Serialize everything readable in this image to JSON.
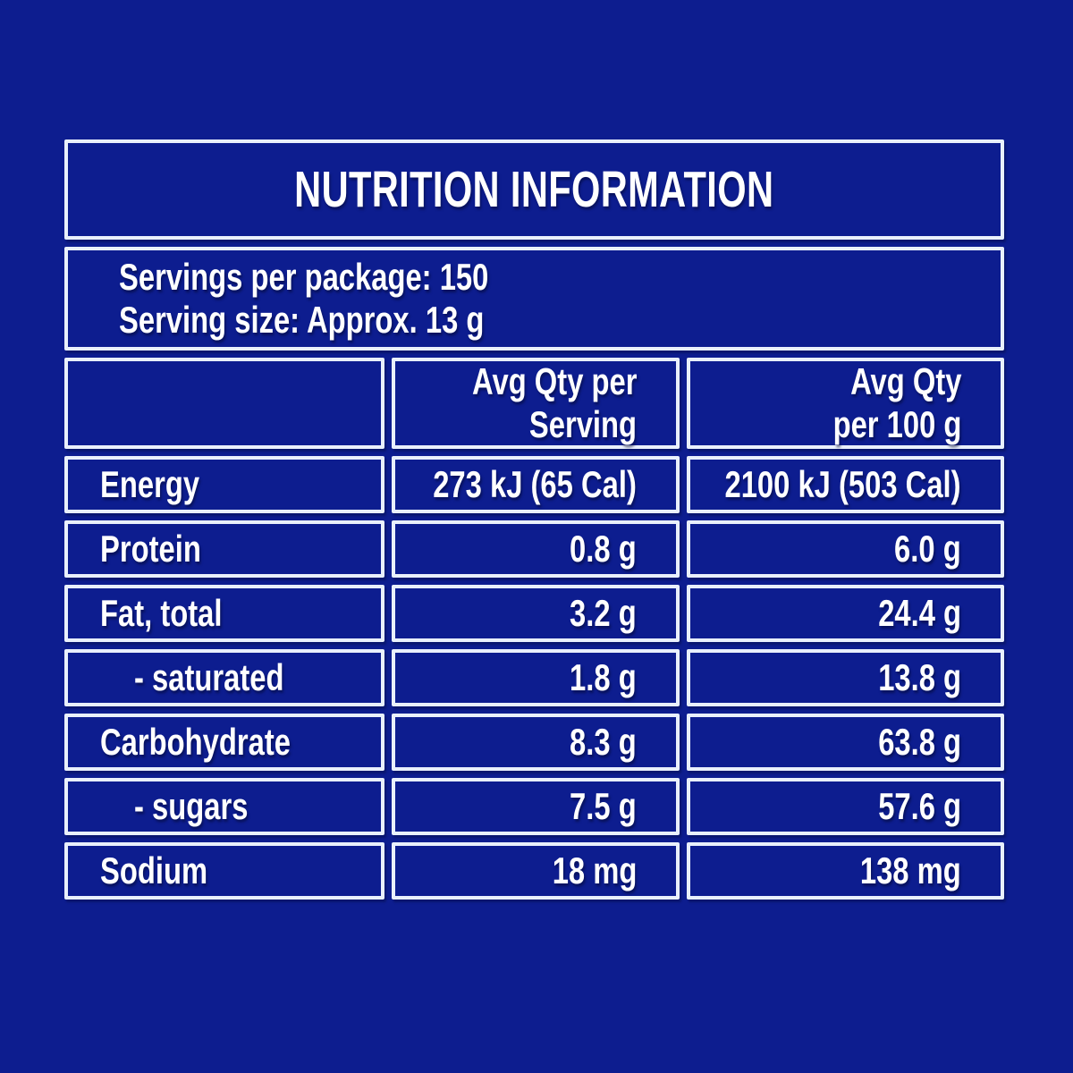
{
  "panel": {
    "title": "NUTRITION INFORMATION",
    "serving_info": {
      "servings_per_package": "Servings per package: 150",
      "serving_size": "Serving size: Approx. 13 g"
    },
    "columns": {
      "per_serving": {
        "line1": "Avg Qty per",
        "line2": "Serving"
      },
      "per_100g": {
        "line1": "Avg Qty",
        "line2": "per 100 g"
      }
    },
    "rows": [
      {
        "label": "Energy",
        "per_serving": "273 kJ (65 Cal)",
        "per_100g": "2100 kJ (503 Cal)"
      },
      {
        "label": "Protein",
        "per_serving": "0.8 g",
        "per_100g": "6.0 g"
      },
      {
        "label": "Fat, total",
        "per_serving": "3.2 g",
        "per_100g": "24.4 g"
      },
      {
        "label": "- saturated",
        "per_serving": "1.8 g",
        "per_100g": "13.8 g"
      },
      {
        "label": "Carbohydrate",
        "per_serving": "8.3 g",
        "per_100g": "63.8 g"
      },
      {
        "label": "- sugars",
        "per_serving": "7.5 g",
        "per_100g": "57.6 g"
      },
      {
        "label": "Sodium",
        "per_serving": "18 mg",
        "per_100g": "138 mg"
      }
    ]
  },
  "colors": {
    "background": "#0d1d8f",
    "cell_fill": "#0d1d8f",
    "border": "#e9f0fc",
    "text": "#ffffff"
  }
}
